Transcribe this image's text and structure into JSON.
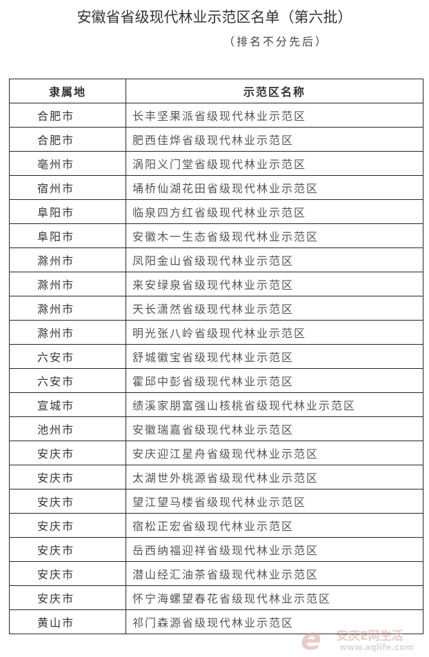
{
  "title": "安徽省省级现代林业示范区名单（第六批）",
  "subtitle": "（排名不分先后）",
  "table": {
    "headers": [
      "隶属地",
      "示范区名称"
    ],
    "rows": [
      [
        "合肥市",
        "长丰坚果派省级现代林业示范区"
      ],
      [
        "合肥市",
        "肥西佳烨省级现代林业示范区"
      ],
      [
        "亳州市",
        "涡阳义门堂省级现代林业示范区"
      ],
      [
        "宿州市",
        "埇桥仙湖花田省级现代林业示范区"
      ],
      [
        "阜阳市",
        "临泉四方红省级现代林业示范区"
      ],
      [
        "阜阳市",
        "安徽木一生态省级现代林业示范区"
      ],
      [
        "滁州市",
        "凤阳金山省级现代林业示范区"
      ],
      [
        "滁州市",
        "来安绿泉省级现代林业示范区"
      ],
      [
        "滁州市",
        "天长潇然省级现代林业示范区"
      ],
      [
        "滁州市",
        "明光张八岭省级现代林业示范区"
      ],
      [
        "六安市",
        "舒城徽宝省级现代林业示范区"
      ],
      [
        "六安市",
        "霍邱中彭省级现代林业示范区"
      ],
      [
        "宣城市",
        "绩溪家朋富强山核桃省级现代林业示范区"
      ],
      [
        "池州市",
        "安徽瑞嘉省级现代林业示范区"
      ],
      [
        "安庆市",
        "安庆迎江星舟省级现代林业示范区"
      ],
      [
        "安庆市",
        "太湖世外桃源省级现代林业示范区"
      ],
      [
        "安庆市",
        "望江望马楼省级现代林业示范区"
      ],
      [
        "安庆市",
        "宿松正宏省级现代林业示范区"
      ],
      [
        "安庆市",
        "岳西纳福迎祥省级现代林业示范区"
      ],
      [
        "安庆市",
        "潜山经汇油茶省级现代林业示范区"
      ],
      [
        "安庆市",
        "怀宁海螺望春花省级现代林业示范区"
      ],
      [
        "黄山市",
        "祁门森源省级现代林业示范区"
      ]
    ]
  },
  "watermark": {
    "mark": "e",
    "text": "安庆E网生活",
    "url": "www.aqlife.com"
  }
}
